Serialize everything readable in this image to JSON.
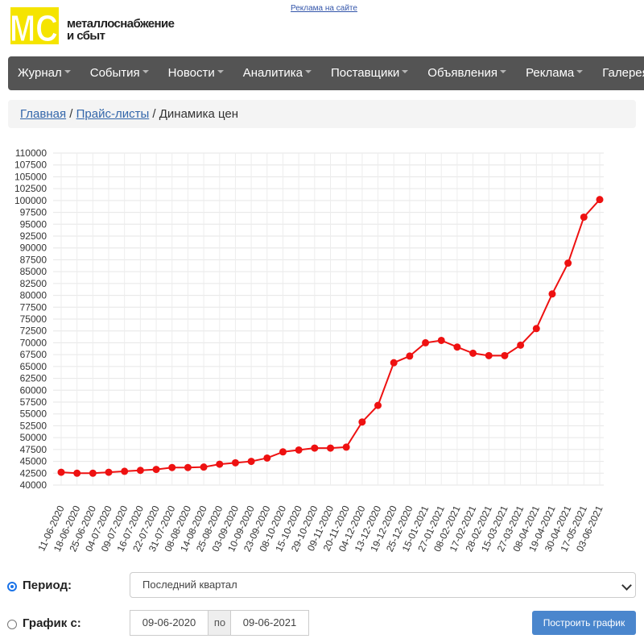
{
  "header": {
    "logo_letters": "MC",
    "logo_line1": "металлоснабжение",
    "logo_line2": "и сбыт",
    "ad_link": "Реклама на сайте",
    "colors": {
      "logo_yellow": "#f5e400",
      "nav_bg": "#545454"
    }
  },
  "nav": {
    "items": [
      {
        "label": "Журнал"
      },
      {
        "label": "События"
      },
      {
        "label": "Новости"
      },
      {
        "label": "Аналитика"
      },
      {
        "label": "Поставщики"
      },
      {
        "label": "Объявления"
      },
      {
        "label": "Реклама"
      },
      {
        "label": "Галерея"
      }
    ]
  },
  "breadcrumb": {
    "home": "Главная",
    "sep1": "/",
    "pricelists": "Прайс-листы",
    "sep2": "/",
    "current": "Динамика цен"
  },
  "chart_data": {
    "type": "line",
    "title": "",
    "xlabel": "",
    "ylabel": "",
    "ylim": [
      40000,
      110000
    ],
    "ystep": 2500,
    "grid": true,
    "legend": "none",
    "color": "#ee1111",
    "x": [
      "11-06-2020",
      "18-06-2020",
      "25-06-2020",
      "04-07-2020",
      "09-07-2020",
      "16-07-2020",
      "22-07-2020",
      "31-07-2020",
      "08-08-2020",
      "14-08-2020",
      "25-08-2020",
      "03-09-2020",
      "10-09-2020",
      "23-09-2020",
      "08-10-2020",
      "15-10-2020",
      "29-10-2020",
      "09-11-2020",
      "20-11-2020",
      "04-12-2020",
      "13-12-2020",
      "19-12-2020",
      "25-12-2020",
      "15-01-2021",
      "27-01-2021",
      "08-02-2021",
      "17-02-2021",
      "28-02-2021",
      "15-03-2021",
      "27-03-2021",
      "08-04-2021",
      "19-04-2021",
      "30-04-2021",
      "17-05-2021",
      "03-06-2021"
    ],
    "series": [
      {
        "values": [
          42700,
          42500,
          42500,
          42700,
          42900,
          43100,
          43300,
          43700,
          43700,
          43800,
          44400,
          44700,
          45000,
          45700,
          47000,
          47400,
          47800,
          47800,
          48000,
          53300,
          56800,
          65800,
          67200,
          70000,
          70500,
          69100,
          67800,
          67300,
          67300,
          69500,
          73000,
          80300,
          86800,
          96500,
          100200
        ]
      }
    ]
  },
  "controls": {
    "period_label": "Период:",
    "period_value": "Последний квартал",
    "graph_from_label": "График с:",
    "date_from": "09-06-2020",
    "date_sep": "по",
    "date_to": "09-06-2021",
    "build_button": "Построить график",
    "colors": {
      "button": "#4a86cd",
      "radio": "#1a73e8"
    }
  }
}
